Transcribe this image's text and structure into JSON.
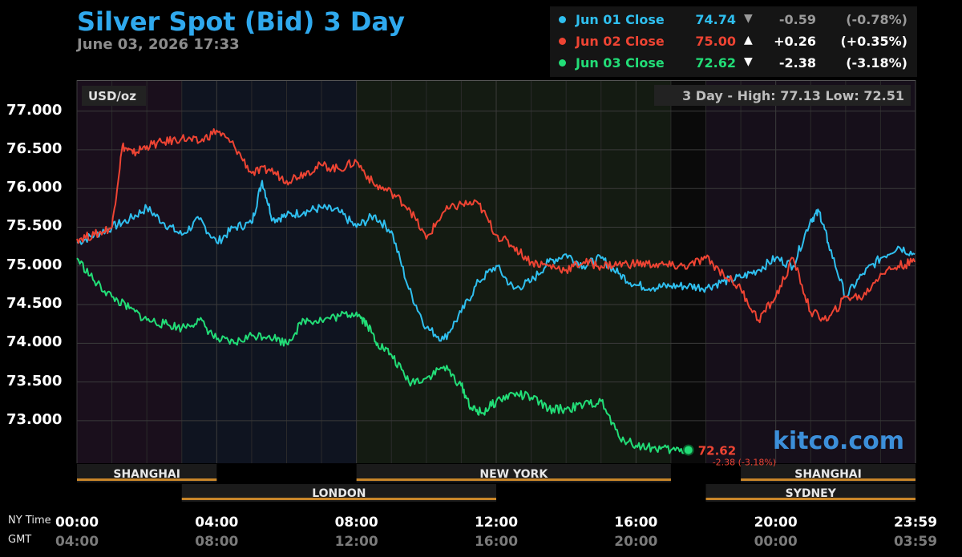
{
  "header": {
    "title": "Silver Spot (Bid) 3 Day",
    "timestamp": "June 03, 2026 17:33"
  },
  "legend": [
    {
      "name": "Jun 01 Close",
      "value": "74.74",
      "arrow": "▼",
      "change": "-0.59",
      "pct": "(-0.78%)",
      "color": "#2fbfef",
      "text_color": "#2fbfef",
      "dim": true
    },
    {
      "name": "Jun 02 Close",
      "value": "75.00",
      "arrow": "▲",
      "change": "+0.26",
      "pct": "(+0.35%)",
      "color": "#ee4433",
      "text_color": "#ee4433",
      "dim": false
    },
    {
      "name": "Jun 03 Close",
      "value": "72.62",
      "arrow": "▼",
      "change": "-2.38",
      "pct": "(-3.18%)",
      "color": "#22dd77",
      "text_color": "#22dd77",
      "dim": false
    }
  ],
  "chart_data": {
    "type": "line",
    "unit_label": "USD/oz",
    "range_label": "3 Day - High: 77.13  Low: 72.51",
    "ylim": [
      72.45,
      77.4
    ],
    "y_ticks": [
      "77.000",
      "76.500",
      "76.000",
      "75.500",
      "75.000",
      "74.500",
      "74.000",
      "73.500",
      "73.000"
    ],
    "x_ticks_ny": [
      "00:00",
      "04:00",
      "08:00",
      "12:00",
      "16:00",
      "20:00",
      "23:59"
    ],
    "x_ticks_gmt": [
      "04:00",
      "08:00",
      "12:00",
      "16:00",
      "20:00",
      "00:00",
      "03:59"
    ],
    "x_caption_ny": "NY Time",
    "x_caption_gmt": "GMT",
    "grid": true,
    "markets_top": [
      "SHANGHAI",
      "NEW YORK",
      "SHANGHAI"
    ],
    "markets_bottom": [
      "LONDON",
      "SYDNEY"
    ],
    "last_value": "72.62",
    "last_change": "-2.38 (-3.18%)",
    "watermark": "kitco.com",
    "series": [
      {
        "name": "Jun 01 Close",
        "color": "#2fbfef",
        "x": [
          0,
          0.5,
          1,
          1.5,
          2,
          2.5,
          3,
          3.5,
          4,
          4.5,
          5,
          5.3,
          5.6,
          6,
          6.5,
          7,
          7.5,
          8,
          8.5,
          9,
          9.5,
          10,
          10.5,
          11,
          11.5,
          12,
          12.5,
          13,
          13.5,
          14,
          14.5,
          15,
          15.5,
          16,
          16.5,
          17,
          17.5,
          18,
          18.5,
          19,
          19.5,
          20,
          20.5,
          21,
          21.25,
          21.5,
          22,
          22.5,
          23,
          23.5,
          23.98
        ],
        "y": [
          75.3,
          75.4,
          75.5,
          75.6,
          75.75,
          75.55,
          75.4,
          75.6,
          75.3,
          75.5,
          75.55,
          76.1,
          75.6,
          75.65,
          75.7,
          75.75,
          75.7,
          75.5,
          75.65,
          75.45,
          74.7,
          74.2,
          74.05,
          74.4,
          74.8,
          75.0,
          74.7,
          74.8,
          75.05,
          75.15,
          75.0,
          75.1,
          74.9,
          74.75,
          74.72,
          74.74,
          74.74,
          74.72,
          74.8,
          74.85,
          74.95,
          75.1,
          75.0,
          75.6,
          75.7,
          75.3,
          74.6,
          74.9,
          75.1,
          75.25,
          75.15
        ]
      },
      {
        "name": "Jun 02 Close",
        "color": "#ee4433",
        "x": [
          0,
          0.5,
          1,
          1.3,
          1.6,
          2,
          2.5,
          3,
          3.5,
          4,
          4.5,
          5,
          5.5,
          6,
          6.5,
          7,
          7.5,
          8,
          8.5,
          9,
          9.5,
          10,
          10.5,
          11,
          11.5,
          12,
          12.5,
          13,
          13.5,
          14,
          14.5,
          15,
          15.5,
          16,
          16.5,
          17,
          17.5,
          18,
          18.5,
          19,
          19.5,
          20,
          20.5,
          21,
          21.5,
          22,
          22.5,
          23,
          23.5,
          23.98
        ],
        "y": [
          75.35,
          75.4,
          75.5,
          76.55,
          76.45,
          76.55,
          76.6,
          76.65,
          76.6,
          76.75,
          76.55,
          76.2,
          76.25,
          76.1,
          76.2,
          76.3,
          76.25,
          76.35,
          76.05,
          75.95,
          75.75,
          75.35,
          75.7,
          75.8,
          75.8,
          75.4,
          75.25,
          75.05,
          75.0,
          74.95,
          75.05,
          75.0,
          75.02,
          75.03,
          75.02,
          75.0,
          75.0,
          75.1,
          74.9,
          74.7,
          74.3,
          74.6,
          75.1,
          74.4,
          74.3,
          74.6,
          74.6,
          74.9,
          75.0,
          75.05
        ]
      },
      {
        "name": "Jun 03 Close",
        "color": "#22dd77",
        "x": [
          0,
          0.5,
          1,
          1.5,
          2,
          2.5,
          3,
          3.5,
          4,
          4.5,
          5,
          5.5,
          6,
          6.5,
          7,
          7.5,
          8,
          8.3,
          8.6,
          9,
          9.5,
          10,
          10.5,
          11,
          11.3,
          11.6,
          12,
          12.5,
          13,
          13.5,
          14,
          14.5,
          15,
          15.5,
          16,
          16.5,
          17,
          17.5
        ],
        "y": [
          75.1,
          74.8,
          74.6,
          74.45,
          74.3,
          74.25,
          74.2,
          74.3,
          74.05,
          74.0,
          74.1,
          74.1,
          74.0,
          74.3,
          74.3,
          74.35,
          74.4,
          74.25,
          74.0,
          73.85,
          73.5,
          73.55,
          73.7,
          73.45,
          73.15,
          73.1,
          73.25,
          73.35,
          73.3,
          73.15,
          73.15,
          73.2,
          73.25,
          72.8,
          72.68,
          72.65,
          72.62,
          72.62
        ]
      }
    ]
  }
}
